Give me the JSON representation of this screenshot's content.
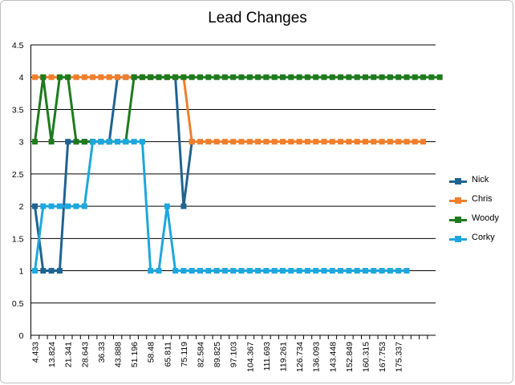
{
  "chart_data": {
    "type": "line",
    "title": "Lead Changes",
    "xlabel": "",
    "ylabel": "",
    "ylim": [
      0,
      4.5
    ],
    "y_ticks": [
      "0",
      "0.5",
      "1",
      "1.5",
      "2",
      "2.5",
      "3",
      "3.5",
      "4",
      "4.5"
    ],
    "x_tick_labels": [
      "4.433",
      "13.824",
      "21.341",
      "28.643",
      "36.33",
      "43.888",
      "51.196",
      "58.48",
      "65.811",
      "75.119",
      "82.584",
      "89.825",
      "97.103",
      "104.367",
      "111.693",
      "119.261",
      "126.734",
      "136.093",
      "143.448",
      "152.849",
      "160.315",
      "167.753",
      "175.337"
    ],
    "grid": true,
    "legend_position": "right",
    "series": [
      {
        "name": "Nick",
        "color": "#1f6391",
        "values": [
          2,
          1,
          1,
          1,
          3,
          3,
          3,
          3,
          3,
          3,
          4,
          4,
          4,
          4,
          4,
          4,
          4,
          4,
          2,
          3
        ]
      },
      {
        "name": "Chris",
        "color": "#f07f2c",
        "values": [
          4,
          4,
          4,
          4,
          4,
          4,
          4,
          4,
          4,
          4,
          4,
          4,
          4,
          4,
          4,
          4,
          4,
          4,
          4,
          3,
          3,
          3,
          3,
          3,
          3,
          3,
          3,
          3,
          3,
          3,
          3,
          3,
          3,
          3,
          3,
          3,
          3,
          3,
          3,
          3,
          3,
          3,
          3,
          3,
          3,
          3,
          3,
          3
        ]
      },
      {
        "name": "Woody",
        "color": "#1f7a1f",
        "values": [
          3,
          4,
          3,
          4,
          4,
          3,
          3,
          3,
          3,
          3,
          3,
          3,
          4,
          4,
          4,
          4,
          4,
          4,
          4,
          4,
          4,
          4,
          4,
          4,
          4,
          4,
          4,
          4,
          4,
          4,
          4,
          4,
          4,
          4,
          4,
          4,
          4,
          4,
          4,
          4,
          4,
          4,
          4,
          4,
          4,
          4,
          4,
          4,
          4,
          4
        ]
      },
      {
        "name": "Corky",
        "color": "#1ea7dd",
        "values": [
          1,
          2,
          2,
          2,
          2,
          2,
          2,
          3,
          3,
          3,
          3,
          3,
          3,
          3,
          1,
          1,
          2,
          1,
          1,
          1,
          1,
          1,
          1,
          1,
          1,
          1,
          1,
          1,
          1,
          1,
          1,
          1,
          1,
          1,
          1,
          1,
          1,
          1,
          1,
          1,
          1,
          1,
          1,
          1,
          1,
          1
        ]
      }
    ]
  }
}
